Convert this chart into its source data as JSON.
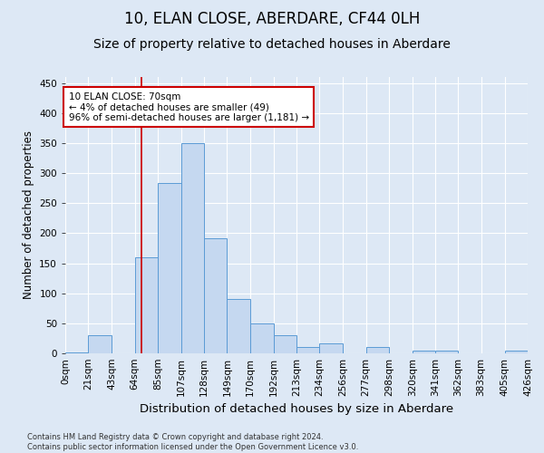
{
  "title_line1": "10, ELAN CLOSE, ABERDARE, CF44 0LH",
  "title_line2": "Size of property relative to detached houses in Aberdare",
  "xlabel": "Distribution of detached houses by size in Aberdare",
  "ylabel": "Number of detached properties",
  "footnote": "Contains HM Land Registry data © Crown copyright and database right 2024.\nContains public sector information licensed under the Open Government Licence v3.0.",
  "bar_edges": [
    0,
    21,
    43,
    64,
    85,
    107,
    128,
    149,
    170,
    192,
    213,
    234,
    256,
    277,
    298,
    320,
    341,
    362,
    383,
    405,
    426
  ],
  "bar_heights": [
    2,
    30,
    0,
    160,
    283,
    350,
    192,
    91,
    50,
    30,
    10,
    17,
    0,
    10,
    0,
    5,
    5,
    0,
    0,
    5
  ],
  "bar_color": "#c5d8f0",
  "bar_edge_color": "#5b9bd5",
  "property_line_x": 70,
  "property_line_color": "#cc0000",
  "annotation_text": "10 ELAN CLOSE: 70sqm\n← 4% of detached houses are smaller (49)\n96% of semi-detached houses are larger (1,181) →",
  "annotation_box_color": "#ffffff",
  "annotation_box_edge_color": "#cc0000",
  "ylim": [
    0,
    460
  ],
  "yticks": [
    0,
    50,
    100,
    150,
    200,
    250,
    300,
    350,
    400,
    450
  ],
  "bg_color": "#dde8f5",
  "plot_bg_color": "#dde8f5",
  "grid_color": "#ffffff",
  "title_fontsize": 12,
  "subtitle_fontsize": 10,
  "tick_label_fontsize": 7.5,
  "xlabel_fontsize": 9.5,
  "ylabel_fontsize": 8.5,
  "footnote_fontsize": 6.0
}
